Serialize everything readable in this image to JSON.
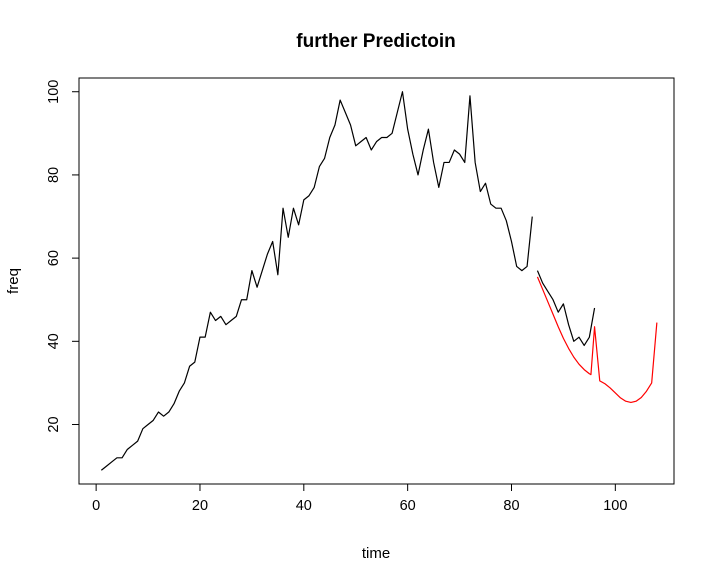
{
  "chart_data": {
    "type": "line",
    "title": "further Predictoin",
    "xlabel": "time",
    "ylabel": "freq",
    "xlim": [
      -3.3,
      111.3
    ],
    "ylim": [
      5.7,
      103.3
    ],
    "xticks": [
      0,
      20,
      40,
      60,
      80,
      100
    ],
    "yticks": [
      20,
      40,
      60,
      80,
      100
    ],
    "grid": false,
    "series": [
      {
        "color": "#000000",
        "points": [
          [
            1,
            9
          ],
          [
            2,
            10
          ],
          [
            3,
            11
          ],
          [
            4,
            12
          ],
          [
            5,
            12
          ],
          [
            6,
            14
          ],
          [
            7,
            15
          ],
          [
            8,
            16
          ],
          [
            9,
            19
          ],
          [
            10,
            20
          ],
          [
            11,
            21
          ],
          [
            12,
            23
          ],
          [
            13,
            22
          ],
          [
            14,
            23
          ],
          [
            15,
            25
          ],
          [
            16,
            28
          ],
          [
            17,
            30
          ],
          [
            18,
            34
          ],
          [
            19,
            35
          ],
          [
            20,
            41
          ],
          [
            21,
            41
          ],
          [
            22,
            47
          ],
          [
            23,
            45
          ],
          [
            24,
            46
          ],
          [
            25,
            44
          ],
          [
            26,
            45
          ],
          [
            27,
            46
          ],
          [
            28,
            50
          ],
          [
            29,
            50
          ],
          [
            30,
            57
          ],
          [
            31,
            53
          ],
          [
            32,
            57
          ],
          [
            33,
            61
          ],
          [
            34,
            64
          ],
          [
            35,
            56
          ],
          [
            36,
            72
          ],
          [
            37,
            65
          ],
          [
            38,
            72
          ],
          [
            39,
            68
          ],
          [
            40,
            74
          ],
          [
            41,
            75
          ],
          [
            42,
            77
          ],
          [
            43,
            82
          ],
          [
            44,
            84
          ],
          [
            45,
            89
          ],
          [
            46,
            92
          ],
          [
            47,
            98
          ],
          [
            48,
            95
          ],
          [
            49,
            92
          ],
          [
            50,
            87
          ],
          [
            51,
            88
          ],
          [
            52,
            89
          ],
          [
            53,
            86
          ],
          [
            54,
            88
          ],
          [
            55,
            89
          ],
          [
            56,
            89
          ],
          [
            57,
            90
          ],
          [
            58,
            95
          ],
          [
            59,
            100
          ],
          [
            60,
            91
          ],
          [
            61,
            85
          ],
          [
            62,
            80
          ],
          [
            63,
            86
          ],
          [
            64,
            91
          ],
          [
            65,
            83
          ],
          [
            66,
            77
          ],
          [
            67,
            83
          ],
          [
            68,
            83
          ],
          [
            69,
            86
          ],
          [
            70,
            85
          ],
          [
            71,
            83
          ],
          [
            72,
            99
          ],
          [
            73,
            83
          ],
          [
            74,
            76
          ],
          [
            75,
            78
          ],
          [
            76,
            73
          ],
          [
            77,
            72
          ],
          [
            78,
            72
          ],
          [
            79,
            69
          ],
          [
            80,
            64
          ],
          [
            81,
            58
          ],
          [
            82,
            57
          ],
          [
            83,
            58
          ],
          [
            84,
            70
          ]
        ]
      },
      {
        "color": "#000000",
        "points": [
          [
            85,
            57
          ],
          [
            86,
            54
          ],
          [
            87,
            52
          ],
          [
            88,
            50
          ],
          [
            89,
            47
          ],
          [
            90,
            49
          ],
          [
            91,
            44
          ],
          [
            92,
            40
          ],
          [
            93,
            41
          ],
          [
            94,
            39
          ],
          [
            95,
            41
          ],
          [
            96,
            48
          ]
        ]
      },
      {
        "color": "#ff0000",
        "points": [
          [
            85,
            55.5
          ],
          [
            86,
            52.5
          ],
          [
            87,
            49.5
          ],
          [
            88,
            46.5
          ],
          [
            89,
            43.5
          ],
          [
            90,
            40.7
          ],
          [
            91,
            38.3
          ],
          [
            92,
            36.2
          ],
          [
            93,
            34.5
          ],
          [
            94,
            33.2
          ],
          [
            95,
            32.2
          ],
          [
            95.3,
            32
          ],
          [
            96,
            43.5
          ],
          [
            97,
            30.5
          ],
          [
            98,
            29.8
          ],
          [
            99,
            28.8
          ],
          [
            100,
            27.6
          ],
          [
            101,
            26.4
          ],
          [
            102,
            25.6
          ],
          [
            103,
            25.3
          ],
          [
            104,
            25.6
          ],
          [
            105,
            26.5
          ],
          [
            106,
            28
          ],
          [
            107,
            30
          ],
          [
            108,
            44.5
          ]
        ]
      }
    ]
  }
}
